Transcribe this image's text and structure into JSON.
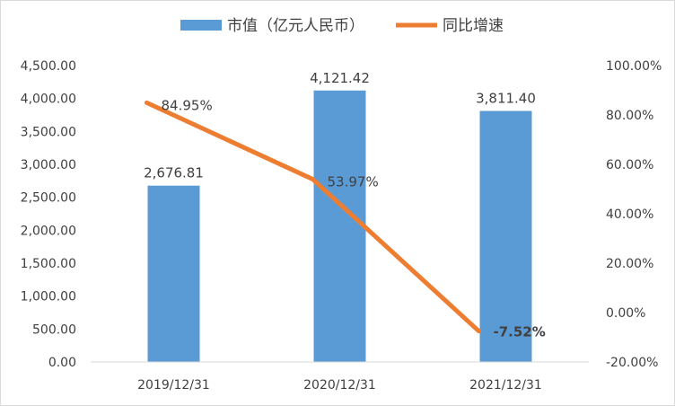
{
  "legend": {
    "bar_label": "市值（亿元人民币）",
    "line_label": "同比增速",
    "position": "top-center"
  },
  "colors": {
    "bar": "#5B9BD5",
    "line": "#ED7D31",
    "negative_label": "#548235",
    "text": "#404040"
  },
  "chart_data": {
    "type": "bar",
    "categories": [
      "2019/12/31",
      "2020/12/31",
      "2021/12/31"
    ],
    "series": [
      {
        "name": "市值（亿元人民币）",
        "type": "bar",
        "axis": "left",
        "values": [
          2676.81,
          4121.42,
          3811.4
        ],
        "labels": [
          "2,676.81",
          "4,121.42",
          "3,811.40"
        ]
      },
      {
        "name": "同比增速",
        "type": "line",
        "axis": "right",
        "values": [
          84.95,
          53.97,
          -7.52
        ],
        "labels": [
          "84.95%",
          "53.97%",
          "-7.52%"
        ]
      }
    ],
    "y_left": {
      "range": [
        0,
        4500
      ],
      "ticks": [
        "0.00",
        "500.00",
        "1,000.00",
        "1,500.00",
        "2,000.00",
        "2,500.00",
        "3,000.00",
        "3,500.00",
        "4,000.00",
        "4,500.00"
      ]
    },
    "y_right": {
      "range": [
        -20,
        100
      ],
      "ticks": [
        "-20.00%",
        "0.00%",
        "20.00%",
        "40.00%",
        "60.00%",
        "80.00%",
        "100.00%"
      ]
    },
    "grid": false,
    "title": "",
    "xlabel": "",
    "ylabel": ""
  }
}
